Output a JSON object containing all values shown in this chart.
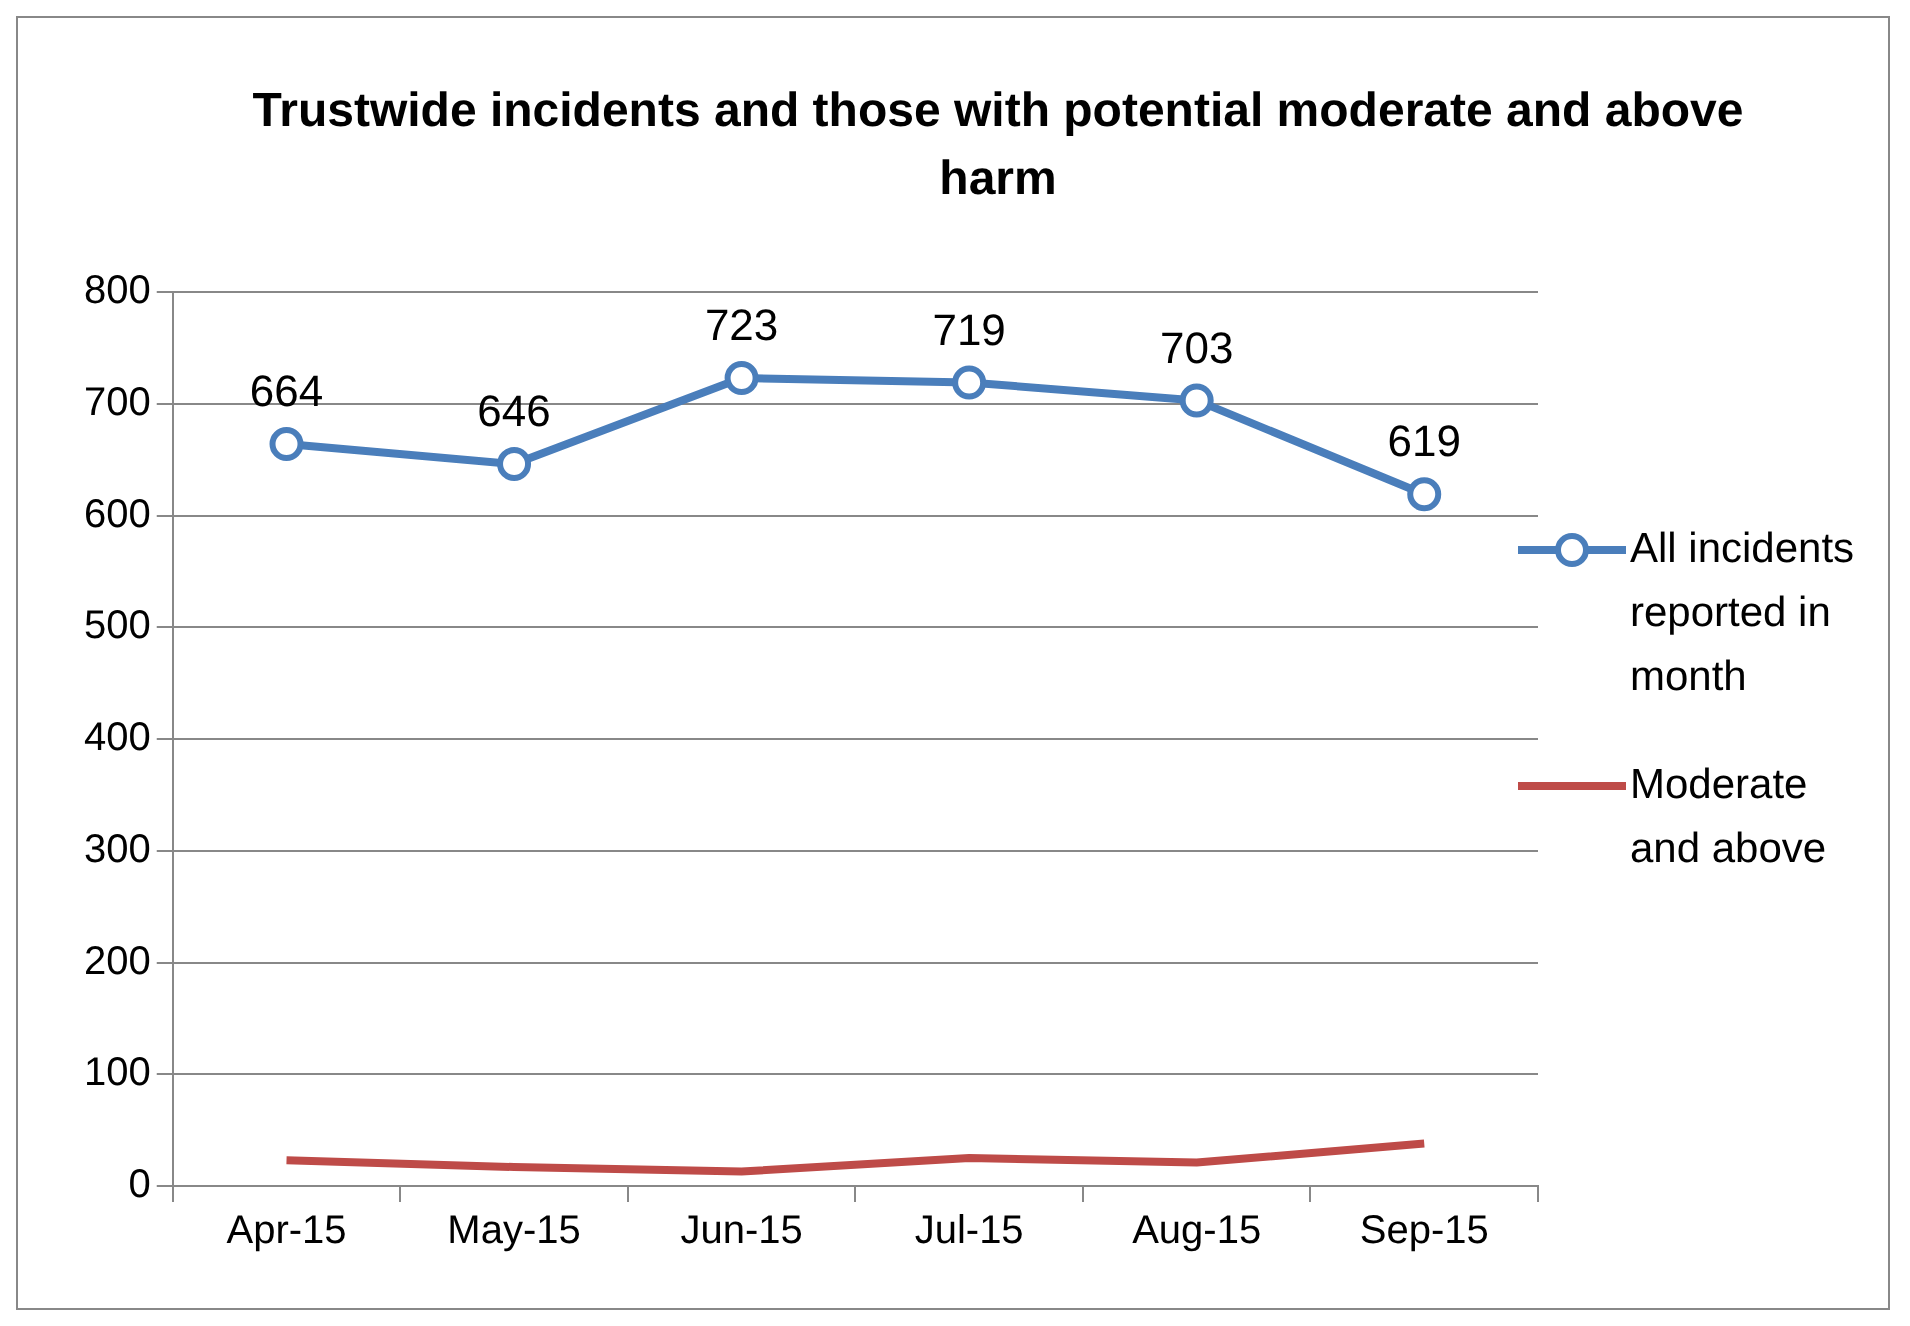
{
  "chart_data": {
    "type": "line",
    "title": "Trustwide incidents and those with potential moderate and above harm",
    "categories": [
      "Apr-15",
      "May-15",
      "Jun-15",
      "Jul-15",
      "Aug-15",
      "Sep-15"
    ],
    "series": [
      {
        "name": "All incidents reported in month",
        "color": "#4a7ebb",
        "marker": "circle",
        "values": [
          664,
          646,
          723,
          719,
          703,
          619
        ],
        "value_labels": [
          "664",
          "646",
          "723",
          "719",
          "703",
          "619"
        ]
      },
      {
        "name": "Moderate and above",
        "color": "#be4b48",
        "marker": "none",
        "values": [
          23,
          17,
          13,
          25,
          21,
          38
        ]
      }
    ],
    "ylim": [
      0,
      800
    ],
    "yticks": [
      0,
      100,
      200,
      300,
      400,
      500,
      600,
      700,
      800
    ],
    "grid": "y",
    "legend": "right"
  }
}
